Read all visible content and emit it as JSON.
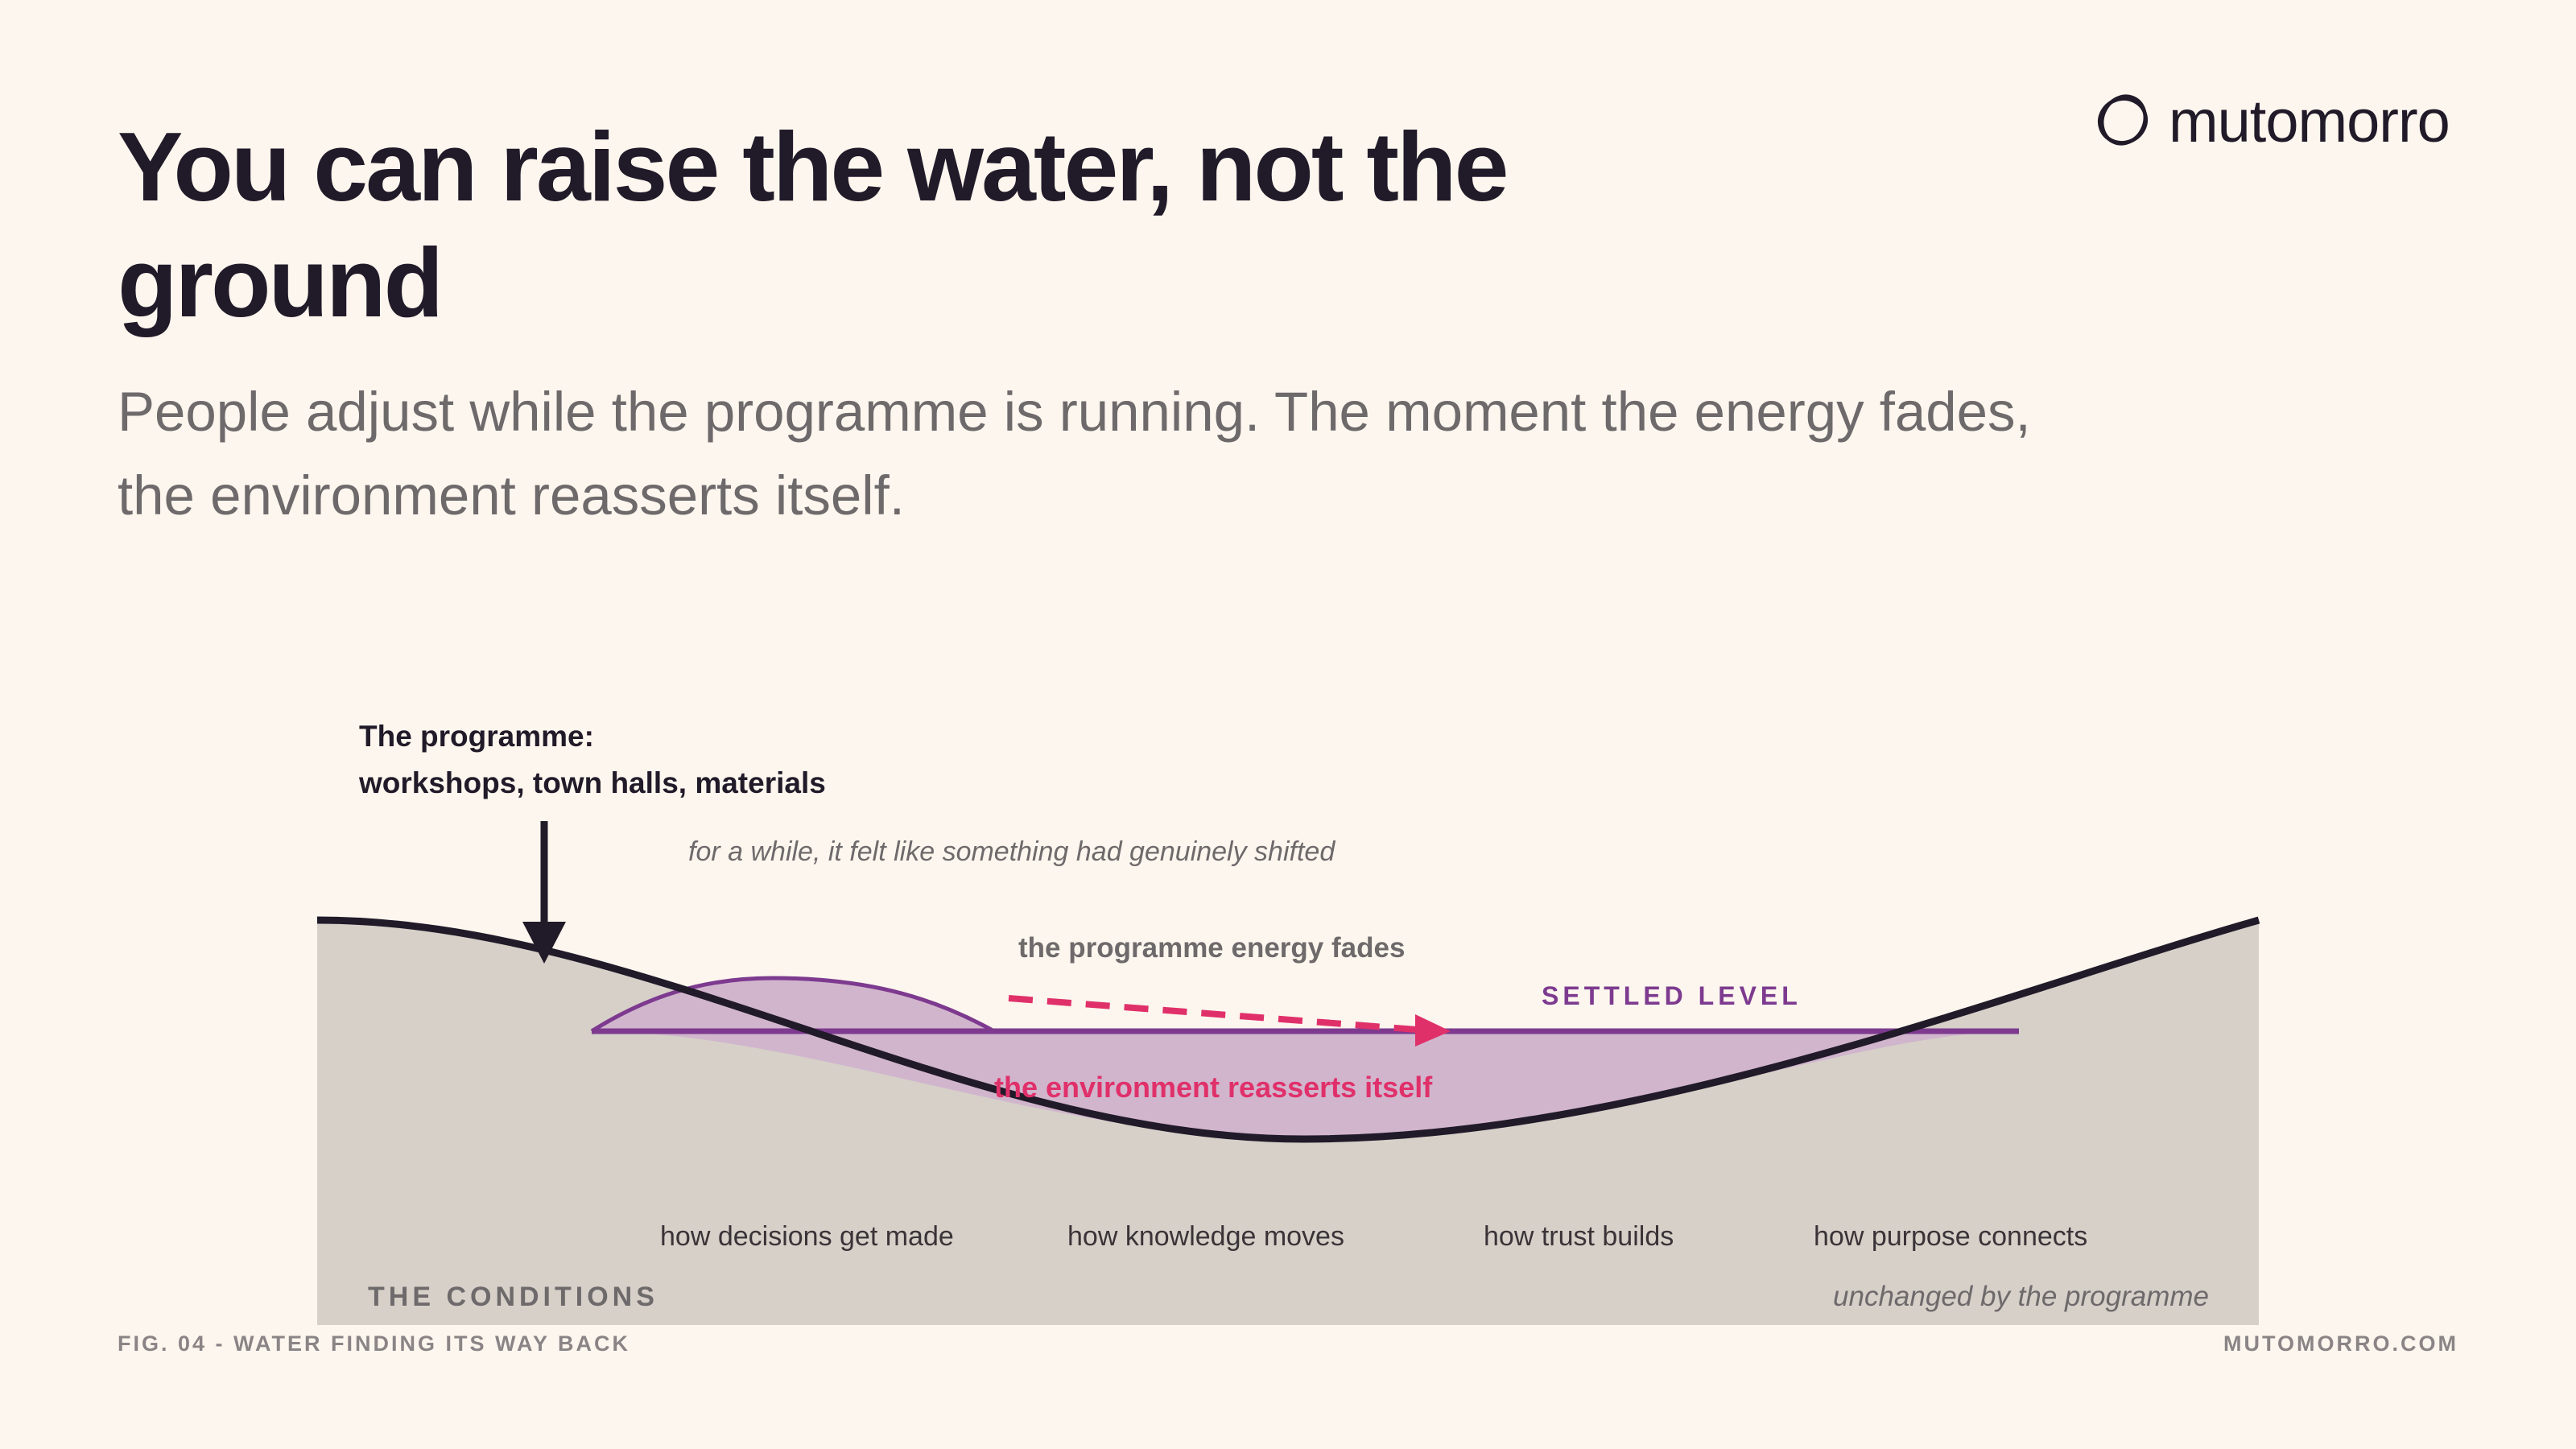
{
  "header": {
    "title": "You can raise the water, not the ground",
    "subtitle": "People adjust while the programme is running. The moment the energy fades, the environment reasserts itself."
  },
  "brand": {
    "name": "mutomorro",
    "logo_icon": "circle-loops-icon"
  },
  "diagram": {
    "programme_label_line1": "The programme:",
    "programme_label_line2": "workshops, town halls, materials",
    "shifted_note": "for a while, it felt like something had genuinely shifted",
    "fades_label": "the programme energy fades",
    "settled_label": "SETTLED LEVEL",
    "reasserts_label": "the environment reasserts itself",
    "conditions": [
      "how decisions get made",
      "how knowledge moves",
      "how trust builds",
      "how purpose connects"
    ],
    "conditions_title": "THE CONDITIONS",
    "conditions_note": "unchanged by the programme"
  },
  "footer": {
    "figure_caption": "FIG. 04 - WATER FINDING ITS WAY BACK",
    "site": "MUTOMORRO.COM"
  },
  "colors": {
    "background": "#FCF6EE",
    "ink": "#211A29",
    "ground": "#D6D0C9",
    "water": "#D1B5CD",
    "purple": "#7D3A8F",
    "accent": "#E0306A",
    "muted": "#6E6A6B"
  }
}
